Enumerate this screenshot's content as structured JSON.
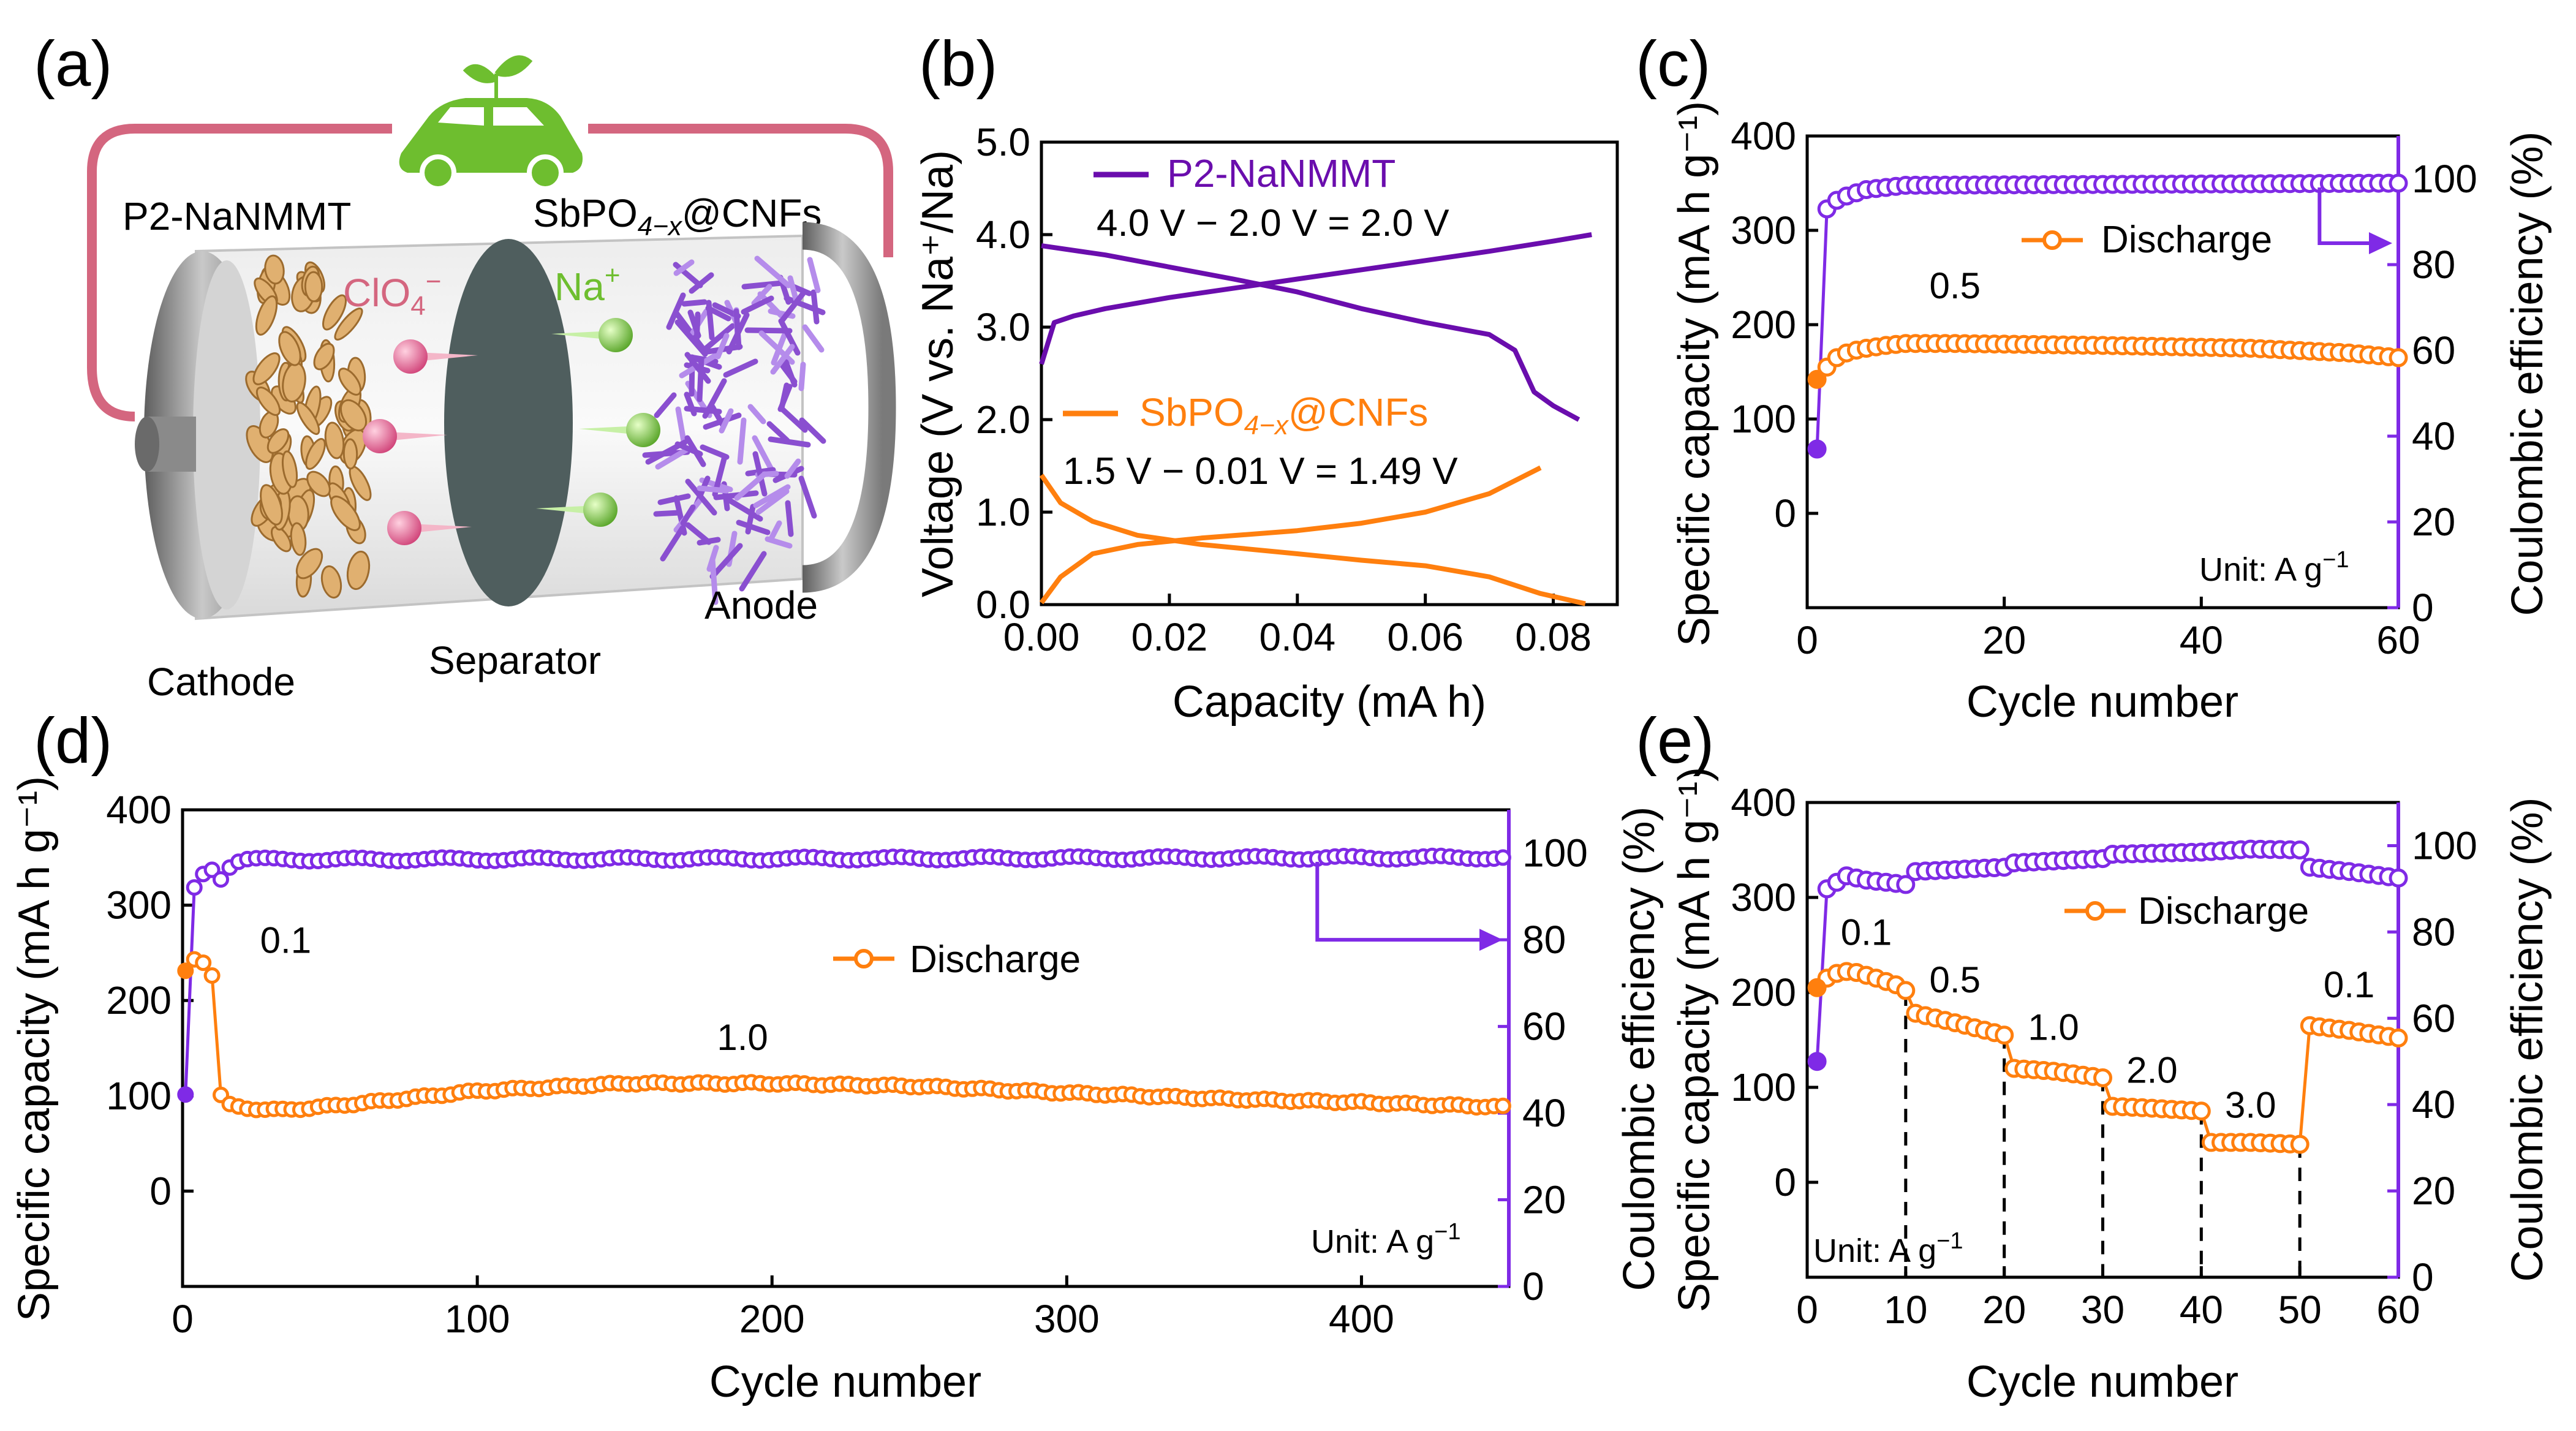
{
  "colors": {
    "orange": "#FF7F0E",
    "purple": "#7F2AE6",
    "dark_purple": "#6A0DAD",
    "pink": "#D4667F",
    "green": "#6EBE2F",
    "gray": "#8C8C8C"
  },
  "panel_a": {
    "label": "(a)",
    "cathode_material": "P2-NaNMMT",
    "anode_material_pre": "SbPO",
    "anode_material_sub": "4−x",
    "anode_material_post": "@CNFs",
    "anion_pre": "ClO",
    "anion_sub": "4",
    "anion_sup": "−",
    "cation_pre": "Na",
    "cation_sup": "+",
    "cathode": "Cathode",
    "separator": "Separator",
    "anode": "Anode",
    "car_icon": "electric-car-icon"
  },
  "chart_data": [
    {
      "id": "b",
      "label": "(b)",
      "type": "line",
      "xlabel": "Capacity (mA h)",
      "ylabel": "Voltage (V vs. Na⁺/Na)",
      "xlim": [
        0,
        0.09
      ],
      "ylim": [
        0,
        5
      ],
      "xticks": [
        "0.00",
        "0.02",
        "0.04",
        "0.06",
        "0.08"
      ],
      "yticks": [
        "0.0",
        "1.0",
        "2.0",
        "3.0",
        "4.0",
        "5.0"
      ],
      "legend": [
        {
          "name": "P2-NaNMMT",
          "annotation": "4.0 V − 2.0 V = 2.0 V"
        },
        {
          "name_pre": "SbPO",
          "name_sub": "4−x",
          "name_post": "@CNFs",
          "annotation": "1.5 V − 0.01 V = 1.49 V"
        }
      ],
      "series": [
        {
          "name": "P2-NaNMMT charge",
          "color": "#6A0DAD",
          "x": [
            0,
            0.002,
            0.005,
            0.01,
            0.02,
            0.03,
            0.04,
            0.05,
            0.06,
            0.07,
            0.08,
            0.086
          ],
          "y": [
            2.6,
            3.05,
            3.12,
            3.2,
            3.32,
            3.42,
            3.52,
            3.62,
            3.72,
            3.82,
            3.93,
            4.0
          ]
        },
        {
          "name": "P2-NaNMMT discharge",
          "color": "#6A0DAD",
          "x": [
            0,
            0.01,
            0.02,
            0.03,
            0.04,
            0.05,
            0.06,
            0.07,
            0.074,
            0.077,
            0.08,
            0.084
          ],
          "y": [
            3.88,
            3.78,
            3.65,
            3.52,
            3.38,
            3.2,
            3.05,
            2.92,
            2.75,
            2.3,
            2.15,
            2.0
          ]
        },
        {
          "name": "SbPO4-x@CNFs sodiation",
          "color": "#FF7F0E",
          "x": [
            0,
            0.003,
            0.008,
            0.015,
            0.025,
            0.04,
            0.05,
            0.06,
            0.07,
            0.078,
            0.085
          ],
          "y": [
            1.4,
            1.1,
            0.9,
            0.75,
            0.65,
            0.55,
            0.48,
            0.42,
            0.3,
            0.12,
            0.01
          ]
        },
        {
          "name": "SbPO4-x@CNFs desodiation",
          "color": "#FF7F0E",
          "x": [
            0,
            0.003,
            0.008,
            0.015,
            0.025,
            0.04,
            0.05,
            0.06,
            0.07,
            0.078
          ],
          "y": [
            0.02,
            0.3,
            0.55,
            0.65,
            0.72,
            0.8,
            0.88,
            1.0,
            1.2,
            1.48
          ]
        }
      ]
    },
    {
      "id": "c",
      "label": "(c)",
      "type": "line",
      "xlabel": "Cycle number",
      "ylabel": "Specific capacity (mA h g⁻¹)",
      "y2label": "Coulombic efficiency (%)",
      "xlim": [
        0,
        60
      ],
      "ylim": [
        -100,
        400
      ],
      "y2lim": [
        0,
        110
      ],
      "xticks": [
        "0",
        "20",
        "40",
        "60"
      ],
      "yticks": [
        "0",
        "100",
        "200",
        "300",
        "400"
      ],
      "y2ticks": [
        "0",
        "20",
        "40",
        "60",
        "80",
        "100"
      ],
      "legend": "Discharge",
      "unit_pre": "Unit: A g",
      "unit_sup": "−1",
      "rate_labels": [
        {
          "text": "0.5",
          "x": 15,
          "y": 228
        }
      ],
      "arrow": {
        "from_x": 52,
        "from_y2": 98,
        "to_y2": 85
      },
      "discharge_key": [
        1,
        142,
        2,
        155,
        3,
        165,
        4,
        170,
        5,
        173,
        6,
        175,
        8,
        178,
        10,
        180,
        15,
        180,
        30,
        178,
        45,
        175,
        55,
        170,
        60,
        165
      ],
      "ce_key": [
        1,
        37,
        2,
        93,
        3,
        95,
        4,
        96,
        6,
        97.5,
        10,
        98.5,
        60,
        99
      ]
    },
    {
      "id": "d",
      "label": "(d)",
      "type": "line",
      "xlabel": "Cycle number",
      "ylabel": "Specific capacity (mA h g⁻¹)",
      "y2label": "Coulombic efficiency (%)",
      "xlim": [
        0,
        450
      ],
      "ylim": [
        -100,
        400
      ],
      "y2lim": [
        0,
        110
      ],
      "xticks": [
        "0",
        "100",
        "200",
        "300",
        "400"
      ],
      "yticks": [
        "0",
        "100",
        "200",
        "300",
        "400"
      ],
      "y2ticks": [
        "0",
        "20",
        "40",
        "60",
        "80",
        "100"
      ],
      "legend": "Discharge",
      "unit_pre": "Unit: A g",
      "unit_sup": "−1",
      "rate_labels": [
        {
          "text": "0.1",
          "x": 35,
          "y": 250
        },
        {
          "text": "1.0",
          "x": 190,
          "y": 148
        }
      ],
      "arrow": {
        "from_x": 385,
        "from_y2": 98,
        "to_y2": 80
      },
      "discharge_key": [
        1,
        230,
        3,
        240,
        5,
        245,
        8,
        238,
        11,
        222,
        12,
        110,
        14,
        92,
        20,
        87,
        35,
        85,
        60,
        92,
        100,
        105,
        150,
        113,
        200,
        113,
        250,
        110,
        300,
        103,
        350,
        97,
        400,
        93,
        450,
        88
      ],
      "ce_key": [
        1,
        44,
        3,
        45,
        4,
        92,
        6,
        95,
        9,
        96,
        11,
        97,
        14,
        93,
        16,
        97,
        20,
        98.5,
        450,
        99
      ]
    },
    {
      "id": "e",
      "label": "(e)",
      "type": "line",
      "xlabel": "Cycle number",
      "ylabel": "Specific capacity (mA h g⁻¹)",
      "y2label": "Coulombic efficiency (%)",
      "xlim": [
        0,
        60
      ],
      "ylim": [
        -100,
        400
      ],
      "y2lim": [
        0,
        110
      ],
      "xticks": [
        "0",
        "10",
        "20",
        "30",
        "40",
        "50",
        "60"
      ],
      "yticks": [
        "0",
        "100",
        "200",
        "300",
        "400"
      ],
      "y2ticks": [
        "0",
        "20",
        "40",
        "60",
        "80",
        "100"
      ],
      "legend": "Discharge",
      "unit_pre": "Unit: A g",
      "unit_sup": "−1",
      "rate_labels": [
        {
          "text": "0.1",
          "x": 6,
          "y": 250
        },
        {
          "text": "0.5",
          "x": 15,
          "y": 200
        },
        {
          "text": "1.0",
          "x": 25,
          "y": 150
        },
        {
          "text": "2.0",
          "x": 35,
          "y": 105
        },
        {
          "text": "3.0",
          "x": 45,
          "y": 68
        },
        {
          "text": "0.1",
          "x": 55,
          "y": 195
        }
      ],
      "dashed_lines": [
        {
          "x": 10,
          "y_top": 200
        },
        {
          "x": 20,
          "y_top": 155
        },
        {
          "x": 30,
          "y_top": 110
        },
        {
          "x": 40,
          "y_top": 75
        },
        {
          "x": 50,
          "y_top": 40
        }
      ],
      "arrow": null,
      "discharge_key": [
        1,
        205,
        2,
        215,
        3,
        220,
        4,
        222,
        5,
        221,
        7,
        215,
        9,
        208,
        10,
        202,
        11,
        178,
        15,
        168,
        20,
        155,
        21,
        120,
        25,
        117,
        30,
        110,
        31,
        80,
        35,
        78,
        40,
        75,
        41,
        42,
        45,
        42,
        50,
        40,
        51,
        165,
        55,
        160,
        60,
        152
      ],
      "ce_key": [
        1,
        50,
        2,
        90,
        4,
        93,
        6,
        92,
        10,
        91,
        11,
        94,
        20,
        95,
        21,
        96,
        30,
        97,
        31,
        98,
        40,
        98.5,
        45,
        99.2,
        50,
        99,
        51,
        95,
        55,
        94,
        60,
        92.5
      ]
    }
  ]
}
